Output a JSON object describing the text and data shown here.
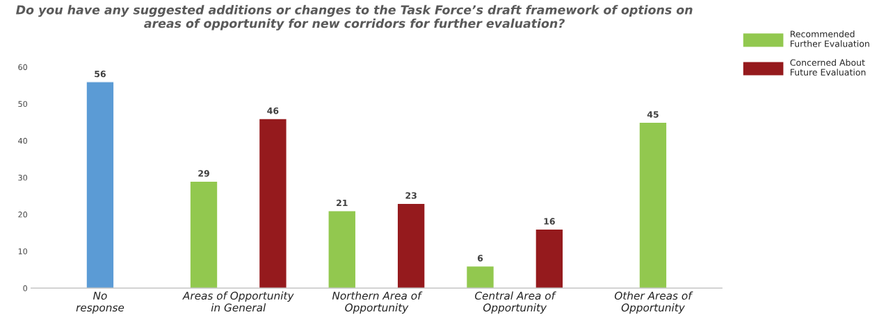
{
  "chart_data": {
    "type": "bar",
    "title": "Do you have any suggested additions or changes to the Task Force’s draft framework of options on areas of opportunity for new corridors for further evaluation?",
    "categories": [
      "No\nresponse",
      "Areas of Opportunity\nin General",
      "Northern Area of\nOpportunity",
      "Central Area of\nOpportunity",
      "Other Areas of\nOpportunity"
    ],
    "series": [
      {
        "color": "#5b9bd5",
        "values": [
          56,
          null,
          null,
          null,
          null
        ]
      },
      {
        "name": "Recommended\nFurther Evaluation",
        "color": "#92c84f",
        "values": [
          null,
          29,
          21,
          6,
          45
        ]
      },
      {
        "name": "Concerned About\nFuture Evaluation",
        "color": "#951a1d",
        "values": [
          null,
          46,
          23,
          16,
          null
        ]
      }
    ],
    "ylim": [
      0,
      60
    ],
    "yticks": [
      0,
      10,
      20,
      30,
      40,
      50,
      60
    ],
    "data_labels": true,
    "grid": false,
    "legend": "top right"
  }
}
